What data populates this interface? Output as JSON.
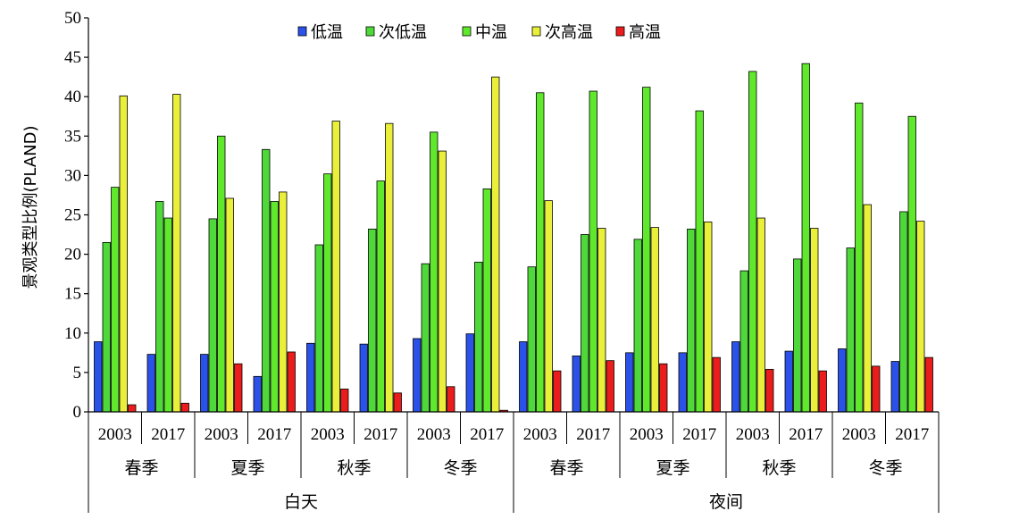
{
  "chart_data": {
    "type": "bar",
    "ylabel": "景观类型比例(PLAND)",
    "ylim": [
      0,
      50
    ],
    "yticks": [
      0,
      5,
      10,
      15,
      20,
      25,
      30,
      35,
      40,
      45,
      50
    ],
    "legend_position": "top",
    "grid": false,
    "x_levels": {
      "year": [
        "2003",
        "2017",
        "2003",
        "2017",
        "2003",
        "2017",
        "2003",
        "2017",
        "2003",
        "2017",
        "2003",
        "2017",
        "2003",
        "2017",
        "2003",
        "2017"
      ],
      "season": [
        "春季",
        "夏季",
        "秋季",
        "冬季",
        "春季",
        "夏季",
        "秋季",
        "冬季"
      ],
      "period": [
        "白天",
        "夜间"
      ]
    },
    "series": [
      {
        "name": "低温",
        "color": "#2a52e8",
        "values": [
          8.9,
          7.3,
          7.3,
          4.5,
          8.7,
          8.6,
          9.3,
          9.9,
          8.9,
          7.1,
          7.5,
          7.5,
          8.9,
          7.7,
          8.0,
          6.4
        ]
      },
      {
        "name": "次低温",
        "color": "#4ed83a",
        "values": [
          21.5,
          26.7,
          24.5,
          33.3,
          21.2,
          23.2,
          18.8,
          19.0,
          18.4,
          22.5,
          21.9,
          23.2,
          17.9,
          19.4,
          20.8,
          25.4
        ]
      },
      {
        "name": "中温",
        "color": "#5fe82c",
        "values": [
          28.5,
          24.6,
          35.0,
          26.7,
          30.2,
          29.3,
          35.5,
          28.3,
          40.5,
          40.7,
          41.2,
          38.2,
          43.2,
          44.2,
          39.2,
          37.5
        ]
      },
      {
        "name": "次高温",
        "color": "#eaf03a",
        "values": [
          40.1,
          40.3,
          27.1,
          27.9,
          36.9,
          36.6,
          33.1,
          42.5,
          26.8,
          23.3,
          23.4,
          24.1,
          24.6,
          23.3,
          26.3,
          24.2
        ]
      },
      {
        "name": "高温",
        "color": "#ea1c1c",
        "values": [
          0.9,
          1.1,
          6.1,
          7.6,
          2.9,
          2.4,
          3.2,
          0.2,
          5.2,
          6.5,
          6.1,
          6.9,
          5.4,
          5.2,
          5.8,
          6.9
        ]
      }
    ]
  }
}
